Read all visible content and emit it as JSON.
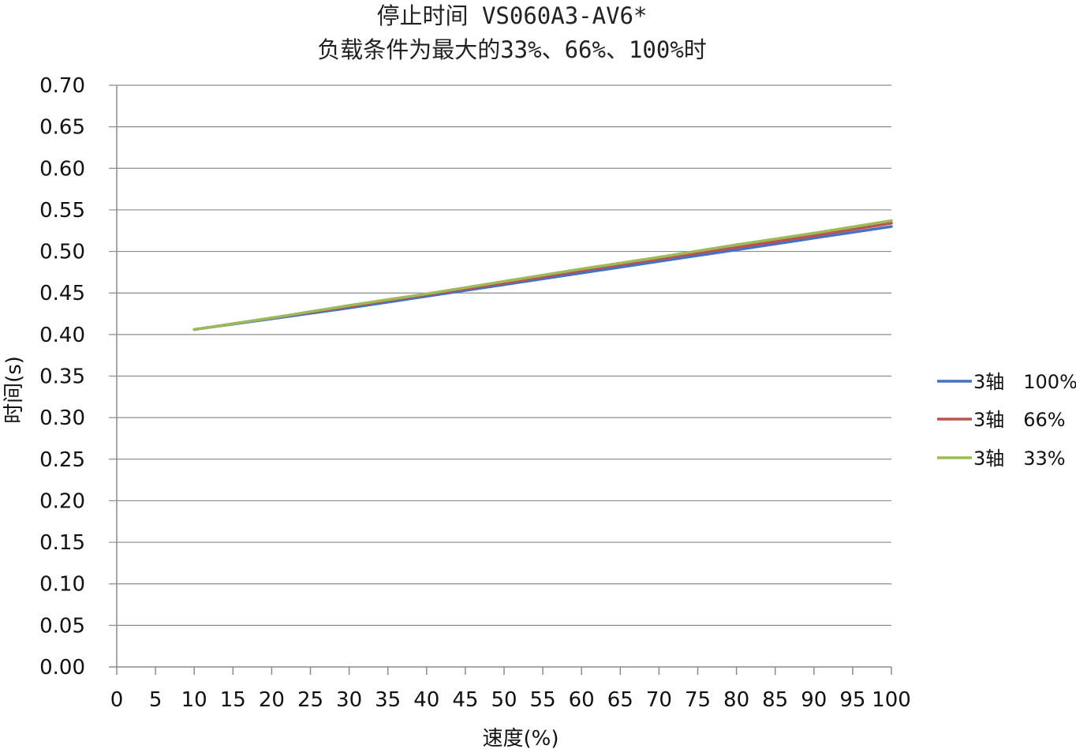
{
  "chart_data": {
    "type": "line",
    "title": "停止时间 VS060A3-AV6*",
    "subtitle": "负载条件为最大的33%、66%、100%时",
    "xlabel": "速度(%)",
    "ylabel": "时间(s)",
    "xlim": [
      0,
      100
    ],
    "ylim": [
      0,
      0.7
    ],
    "x_ticks": [
      "0",
      "5",
      "10",
      "15",
      "20",
      "25",
      "30",
      "35",
      "40",
      "45",
      "50",
      "55",
      "60",
      "65",
      "70",
      "75",
      "80",
      "85",
      "90",
      "95",
      "100"
    ],
    "y_ticks": [
      "0.00",
      "0.05",
      "0.10",
      "0.15",
      "0.20",
      "0.25",
      "0.30",
      "0.35",
      "0.40",
      "0.45",
      "0.50",
      "0.55",
      "0.60",
      "0.65",
      "0.70"
    ],
    "grid": true,
    "legend_position": "right",
    "x": [
      10,
      20,
      30,
      40,
      50,
      60,
      70,
      80,
      90,
      100
    ],
    "series": [
      {
        "name": "3轴　100%",
        "color": "#4472c4",
        "values": [
          0.406,
          0.419,
          0.432,
          0.446,
          0.46,
          0.474,
          0.488,
          0.502,
          0.516,
          0.53
        ]
      },
      {
        "name": "3轴　66%",
        "color": "#c0504d",
        "values": [
          0.406,
          0.42,
          0.434,
          0.448,
          0.462,
          0.477,
          0.491,
          0.505,
          0.519,
          0.534
        ]
      },
      {
        "name": "3轴　33%",
        "color": "#9bbb59",
        "values": [
          0.406,
          0.42,
          0.435,
          0.449,
          0.464,
          0.479,
          0.493,
          0.508,
          0.522,
          0.537
        ]
      }
    ]
  }
}
